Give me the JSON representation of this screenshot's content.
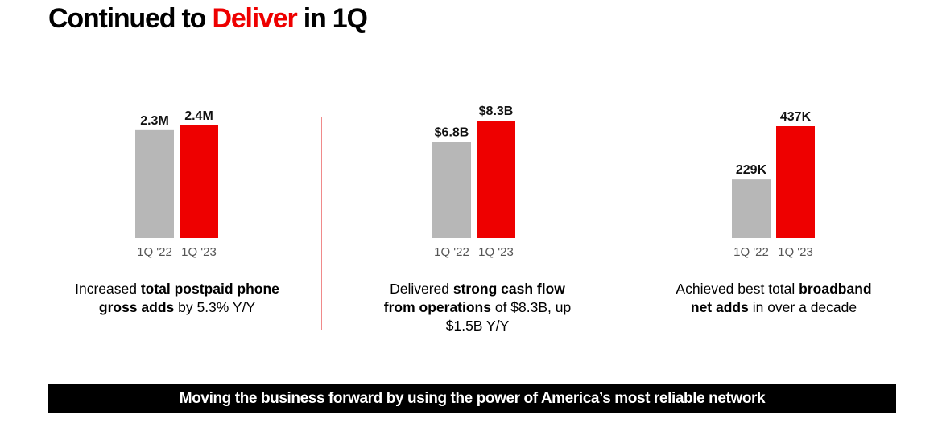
{
  "title": {
    "prefix": "Continued to ",
    "accent": "Deliver",
    "suffix": " in 1Q"
  },
  "colors": {
    "prior": "#b7b7b7",
    "current": "#ee0000",
    "divider": "#f08a8a"
  },
  "chart_data": [
    {
      "type": "bar",
      "categories": [
        "1Q '22",
        "1Q '23"
      ],
      "values": [
        2.3,
        2.4
      ],
      "data_labels": [
        "2.3M",
        "2.4M"
      ],
      "unit": "M"
    },
    {
      "type": "bar",
      "categories": [
        "1Q '22",
        "1Q '23"
      ],
      "values": [
        6.8,
        8.3
      ],
      "data_labels": [
        "$6.8B",
        "$8.3B"
      ],
      "unit": "$B"
    },
    {
      "type": "bar",
      "categories": [
        "1Q '22",
        "1Q '23"
      ],
      "values": [
        229,
        437
      ],
      "data_labels": [
        "229K",
        "437K"
      ],
      "unit": "K"
    }
  ],
  "captions": [
    {
      "p1": "Increased ",
      "b1": "total postpaid phone gross adds",
      "p2": " by 5.3% Y/Y"
    },
    {
      "p1": "Delivered ",
      "b1": "strong cash flow from operations",
      "p2": " of $8.3B, up $1.5B Y/Y"
    },
    {
      "p1": "Achieved best total ",
      "b1": "broadband net adds",
      "p2": " in over a decade"
    }
  ],
  "banner": "Moving the business forward by using the power of America’s most reliable network"
}
